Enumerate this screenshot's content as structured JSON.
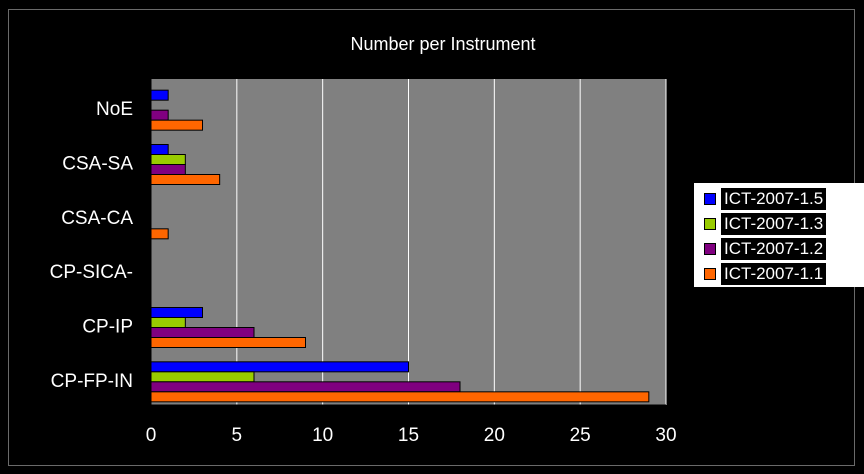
{
  "chart_data": {
    "type": "bar",
    "orientation": "horizontal",
    "title": "Number per Instrument",
    "categories": [
      "NoE",
      "CSA-SA",
      "CSA-CA",
      "CP-SICA-",
      "CP-IP",
      "CP-FP-IN"
    ],
    "series": [
      {
        "name": "ICT-2007-1.5",
        "color": "#0000ff",
        "values": [
          1,
          1,
          0,
          0,
          3,
          15
        ]
      },
      {
        "name": "ICT-2007-1.3",
        "color": "#99cc00",
        "values": [
          0,
          2,
          0,
          0,
          2,
          6
        ]
      },
      {
        "name": "ICT-2007-1.2",
        "color": "#800080",
        "values": [
          1,
          2,
          0,
          0,
          6,
          18
        ]
      },
      {
        "name": "ICT-2007-1.1",
        "color": "#ff6600",
        "values": [
          3,
          4,
          1,
          0,
          9,
          29
        ]
      }
    ],
    "xlim": [
      0,
      30
    ],
    "xticks": [
      "0",
      "5",
      "10",
      "15",
      "20",
      "25",
      "30"
    ],
    "grid": true,
    "legend_position": "right",
    "plot_background": "#808080",
    "text_color": "#ffffff"
  }
}
